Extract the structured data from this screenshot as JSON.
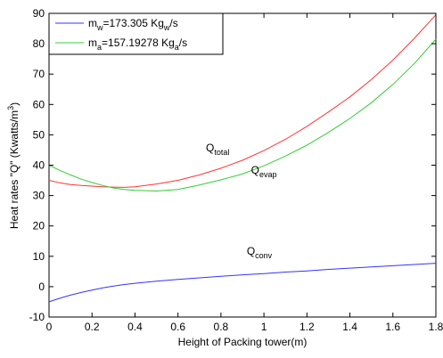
{
  "chart_data": {
    "type": "line",
    "title": "",
    "xlabel": "Height of Packing tower(m)",
    "ylabel": {
      "main": "Heat rates \"Q\" (Kwatts/m",
      "sup": "3",
      "end": ")"
    },
    "xlim": [
      0,
      1.8
    ],
    "ylim": [
      -10,
      90
    ],
    "xticks": [
      "0",
      "0.2",
      "0.4",
      "0.6",
      "0.8",
      "1",
      "1.2",
      "1.4",
      "1.6",
      "1.8"
    ],
    "yticks": [
      "-10",
      "0",
      "10",
      "20",
      "30",
      "40",
      "50",
      "60",
      "70",
      "80",
      "90"
    ],
    "grid": false,
    "legend": {
      "placement": "top-left",
      "entries": [
        {
          "color": "#3333ff",
          "base": "m",
          "sub": "w",
          "mid": "=173.305 Kg",
          "sub2": "w",
          "end": "/s"
        },
        {
          "color": "#33cc33",
          "base": "m",
          "sub": "a",
          "mid": "=157.19278 Kg",
          "sub2": "a",
          "end": "/s"
        }
      ]
    },
    "series": [
      {
        "key": "total",
        "color": "#ff3333",
        "x": [
          0,
          0.05,
          0.1,
          0.15,
          0.2,
          0.25,
          0.3,
          0.35,
          0.4,
          0.5,
          0.6,
          0.7,
          0.8,
          0.9,
          1.0,
          1.1,
          1.2,
          1.3,
          1.4,
          1.5,
          1.6,
          1.7,
          1.8
        ],
        "y": [
          35,
          34.2,
          33.6,
          33.3,
          33.1,
          32.9,
          32.8,
          32.7,
          32.9,
          33.8,
          35,
          36.8,
          39,
          41.6,
          44.8,
          48.5,
          52.8,
          57.5,
          62.5,
          68.2,
          74.6,
          81.8,
          89.5
        ]
      },
      {
        "key": "evap",
        "color": "#33cc33",
        "x": [
          0,
          0.05,
          0.1,
          0.15,
          0.2,
          0.25,
          0.3,
          0.35,
          0.4,
          0.5,
          0.6,
          0.7,
          0.8,
          0.9,
          1.0,
          1.1,
          1.2,
          1.3,
          1.4,
          1.5,
          1.6,
          1.7,
          1.8
        ],
        "y": [
          40,
          38.3,
          36.8,
          35.4,
          34.3,
          33.3,
          32.5,
          32,
          31.7,
          31.5,
          32,
          33.5,
          35.2,
          37.1,
          39.8,
          43,
          46.6,
          50.8,
          55.4,
          60.6,
          66.6,
          73.5,
          81.5
        ]
      },
      {
        "key": "conv",
        "color": "#3333ff",
        "x": [
          0,
          0.05,
          0.1,
          0.15,
          0.2,
          0.25,
          0.3,
          0.35,
          0.4,
          0.5,
          0.6,
          0.7,
          0.8,
          0.9,
          1.0,
          1.1,
          1.2,
          1.3,
          1.4,
          1.5,
          1.6,
          1.7,
          1.8
        ],
        "y": [
          -5,
          -3.8,
          -2.8,
          -1.9,
          -1.1,
          -0.4,
          0.2,
          0.7,
          1.1,
          1.8,
          2.4,
          2.9,
          3.4,
          3.9,
          4.3,
          4.8,
          5.2,
          5.7,
          6.1,
          6.5,
          6.9,
          7.3,
          7.7
        ]
      }
    ],
    "annotations": [
      {
        "key": "total",
        "base": "Q",
        "sub": "total",
        "x": 0.73,
        "y": 44.5
      },
      {
        "key": "evap",
        "base": "Q",
        "sub": "evap",
        "x": 0.94,
        "y": 37.2
      },
      {
        "key": "conv",
        "base": "Q",
        "sub": "conv",
        "x": 0.92,
        "y": 10.5
      }
    ]
  }
}
